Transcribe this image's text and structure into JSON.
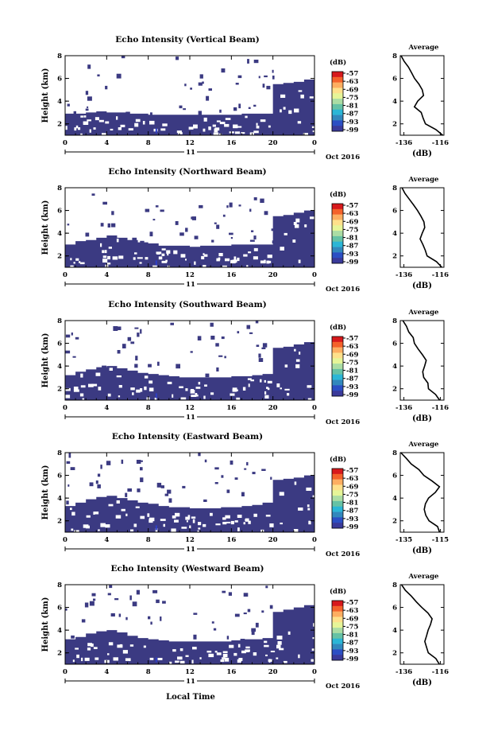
{
  "figure": {
    "xlabel": "Local Time",
    "date_label": "Oct 2016",
    "day_label": "11"
  },
  "colorbar": {
    "unit": "(dB)",
    "tick_labels": [
      "-57",
      "-63",
      "-69",
      "-75",
      "-81",
      "-87",
      "-93",
      "-99"
    ],
    "colors": [
      "#d7191c",
      "#f4622b",
      "#fdae61",
      "#fee08b",
      "#e6f598",
      "#abdda4",
      "#66c2a5",
      "#2bb6d6",
      "#3288bd",
      "#2c4fc4",
      "#3a3a9a"
    ]
  },
  "colors": {
    "echo_fill": "#3b3a82",
    "echo_strong": "#2e3fc7"
  },
  "chart_data": [
    {
      "type": "heatmap",
      "title": "Echo Intensity (Vertical Beam)",
      "ylabel": "Height (km)",
      "xlim": [
        0,
        24
      ],
      "ylim": [
        1,
        8
      ],
      "xticks": [
        "0",
        "4",
        "8",
        "12",
        "16",
        "20",
        "0"
      ],
      "yticks": [
        "2",
        "4",
        "6",
        "8"
      ],
      "echo_top_km": [
        2.9,
        2.9,
        3.0,
        3.1,
        3.0,
        3.0,
        2.9,
        2.9,
        2.8,
        2.8,
        2.8,
        2.8,
        2.8,
        2.8,
        2.8,
        2.8,
        2.8,
        2.9,
        2.9,
        2.9,
        5.5,
        5.6,
        5.7,
        5.9,
        6.0
      ],
      "profile": {
        "title": "Average",
        "xlabel": "(dB)",
        "xticks": [
          "-136",
          "-116"
        ],
        "xlim": [
          -138,
          -114
        ],
        "yticks": [
          "2",
          "4",
          "6",
          "8"
        ],
        "height": [
          1.0,
          1.5,
          2.0,
          2.5,
          3.0,
          3.5,
          4.0,
          4.5,
          5.0,
          5.5,
          6.0,
          6.5,
          7.0,
          7.5,
          8.0
        ],
        "db": [
          -115,
          -118,
          -124,
          -126,
          -127,
          -130,
          -128,
          -125,
          -126,
          -128,
          -130,
          -132,
          -134,
          -136,
          -138
        ]
      }
    },
    {
      "type": "heatmap",
      "title": "Echo Intensity (Northward Beam)",
      "ylabel": "Height (km)",
      "xlim": [
        0,
        24
      ],
      "ylim": [
        1,
        8
      ],
      "xticks": [
        "0",
        "4",
        "8",
        "12",
        "16",
        "20",
        "0"
      ],
      "yticks": [
        "2",
        "4",
        "6",
        "8"
      ],
      "echo_top_km": [
        3.0,
        3.3,
        3.4,
        3.6,
        3.8,
        3.6,
        3.4,
        3.2,
        3.1,
        2.9,
        2.9,
        2.9,
        2.8,
        2.9,
        2.9,
        2.9,
        3.0,
        3.0,
        3.0,
        3.0,
        5.5,
        5.6,
        5.8,
        6.0,
        6.4
      ],
      "profile": {
        "title": "Average",
        "xlabel": "(dB)",
        "xticks": [
          "-136",
          "-116"
        ],
        "xlim": [
          -138,
          -114
        ],
        "yticks": [
          "2",
          "4",
          "6",
          "8"
        ],
        "height": [
          1.0,
          1.5,
          2.0,
          2.5,
          3.0,
          3.5,
          4.0,
          4.5,
          5.0,
          5.5,
          6.0,
          6.5,
          7.0,
          7.5,
          8.0
        ],
        "db": [
          -115,
          -118,
          -123,
          -124,
          -126,
          -127,
          -126,
          -124,
          -125,
          -127,
          -129,
          -131,
          -133,
          -135,
          -137
        ]
      }
    },
    {
      "type": "heatmap",
      "title": "Echo Intensity (Southward Beam)",
      "ylabel": "Height (km)",
      "xlim": [
        0,
        24
      ],
      "ylim": [
        1,
        8
      ],
      "xticks": [
        "0",
        "4",
        "8",
        "12",
        "16",
        "20",
        "0"
      ],
      "yticks": [
        "2",
        "4",
        "6",
        "8"
      ],
      "echo_top_km": [
        3.2,
        3.5,
        3.7,
        3.9,
        4.0,
        3.8,
        3.6,
        3.4,
        3.3,
        3.2,
        3.1,
        3.0,
        3.0,
        3.0,
        3.0,
        3.0,
        3.1,
        3.1,
        3.2,
        3.3,
        5.6,
        5.7,
        5.9,
        6.1,
        6.8
      ],
      "profile": {
        "title": "Average",
        "xlabel": "(dB)",
        "xticks": [
          "-136",
          "-116"
        ],
        "xlim": [
          -138,
          -114
        ],
        "yticks": [
          "2",
          "4",
          "6",
          "8"
        ],
        "height": [
          1.0,
          1.5,
          2.0,
          2.5,
          3.0,
          3.5,
          4.0,
          4.5,
          5.0,
          5.5,
          6.0,
          6.5,
          7.0,
          7.5,
          8.0
        ],
        "db": [
          -116,
          -118,
          -122,
          -123,
          -125,
          -126,
          -125,
          -124,
          -126,
          -128,
          -130,
          -131,
          -133,
          -135,
          -137
        ]
      }
    },
    {
      "type": "heatmap",
      "title": "Echo Intensity (Eastward Beam)",
      "ylabel": "Height (km)",
      "xlim": [
        0,
        24
      ],
      "ylim": [
        1,
        8
      ],
      "xticks": [
        "0",
        "4",
        "8",
        "12",
        "16",
        "20",
        "0"
      ],
      "yticks": [
        "2",
        "4",
        "6",
        "8"
      ],
      "echo_top_km": [
        3.3,
        3.6,
        3.9,
        4.1,
        4.2,
        4.0,
        3.8,
        3.6,
        3.5,
        3.3,
        3.2,
        3.2,
        3.1,
        3.1,
        3.1,
        3.2,
        3.2,
        3.3,
        3.4,
        3.6,
        5.6,
        5.7,
        5.8,
        6.0,
        6.5
      ],
      "profile": {
        "title": "Average",
        "xlabel": "(dB)",
        "xticks": [
          "-135",
          "-115"
        ],
        "xlim": [
          -137,
          -113
        ],
        "yticks": [
          "2",
          "4",
          "6",
          "8"
        ],
        "height": [
          1.0,
          1.5,
          2.0,
          2.5,
          3.0,
          3.5,
          4.0,
          4.5,
          5.0,
          5.5,
          6.0,
          6.5,
          7.0,
          7.5,
          8.0
        ],
        "db": [
          -115,
          -117,
          -121,
          -123,
          -124,
          -123,
          -122,
          -118,
          -116,
          -120,
          -124,
          -127,
          -131,
          -134,
          -137
        ]
      }
    },
    {
      "type": "heatmap",
      "title": "Echo Intensity (Westward Beam)",
      "ylabel": "Height (km)",
      "xlim": [
        0,
        24
      ],
      "ylim": [
        1,
        8
      ],
      "xticks": [
        "0",
        "4",
        "8",
        "12",
        "16",
        "20",
        "0"
      ],
      "yticks": [
        "2",
        "4",
        "6",
        "8"
      ],
      "echo_top_km": [
        3.2,
        3.4,
        3.7,
        3.9,
        4.0,
        3.8,
        3.5,
        3.3,
        3.2,
        3.1,
        3.0,
        3.0,
        3.0,
        3.0,
        3.0,
        3.0,
        3.1,
        3.2,
        3.2,
        3.3,
        5.6,
        5.8,
        6.0,
        6.2,
        6.9
      ],
      "profile": {
        "title": "Average",
        "xlabel": "(dB)",
        "xticks": [
          "-136",
          "-116"
        ],
        "xlim": [
          -138,
          -114
        ],
        "yticks": [
          "2",
          "4",
          "6",
          "8"
        ],
        "height": [
          1.0,
          1.5,
          2.0,
          2.5,
          3.0,
          3.5,
          4.0,
          4.5,
          5.0,
          5.5,
          6.0,
          6.5,
          7.0,
          7.5,
          8.0
        ],
        "db": [
          -116,
          -118,
          -122,
          -124,
          -125,
          -124,
          -123,
          -121,
          -120,
          -123,
          -126,
          -129,
          -132,
          -135,
          -137
        ]
      }
    }
  ]
}
